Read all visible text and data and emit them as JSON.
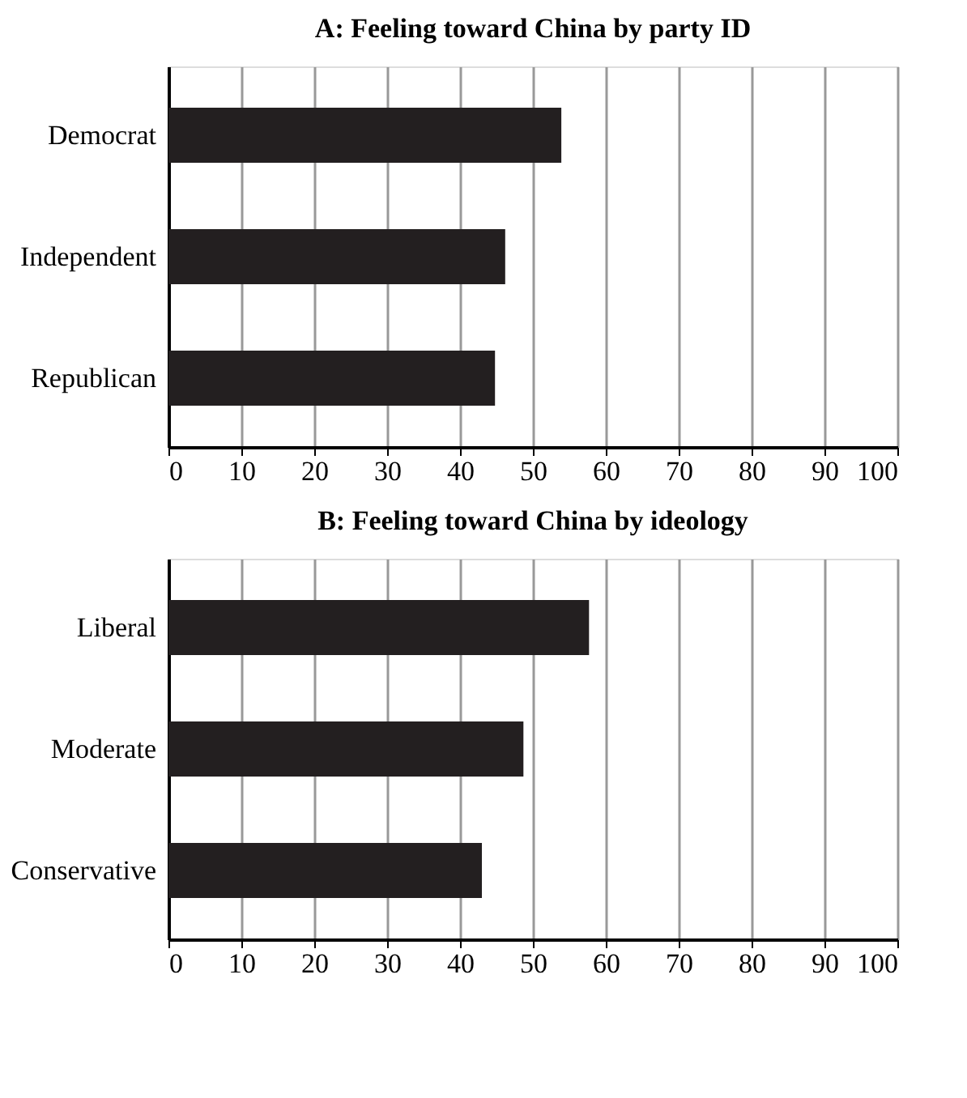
{
  "chart_data": [
    {
      "type": "bar",
      "orientation": "horizontal",
      "title": "A: Feeling toward China by party ID",
      "categories": [
        "Democrat",
        "Independent",
        "Republican"
      ],
      "values": [
        53.9,
        46.2,
        44.8
      ],
      "color": "#231f20",
      "xlim": [
        0,
        100
      ],
      "xticks": [
        0,
        10,
        20,
        30,
        40,
        50,
        60,
        70,
        80,
        90,
        100
      ],
      "grid": "x"
    },
    {
      "type": "bar",
      "orientation": "horizontal",
      "title": "B: Feeling toward China by ideology",
      "categories": [
        "Liberal",
        "Moderate",
        "Conservative"
      ],
      "values": [
        57.7,
        48.7,
        43.0
      ],
      "color": "#231f20",
      "xlim": [
        0,
        100
      ],
      "xticks": [
        0,
        10,
        20,
        30,
        40,
        50,
        60,
        70,
        80,
        90,
        100
      ],
      "grid": "x"
    }
  ]
}
